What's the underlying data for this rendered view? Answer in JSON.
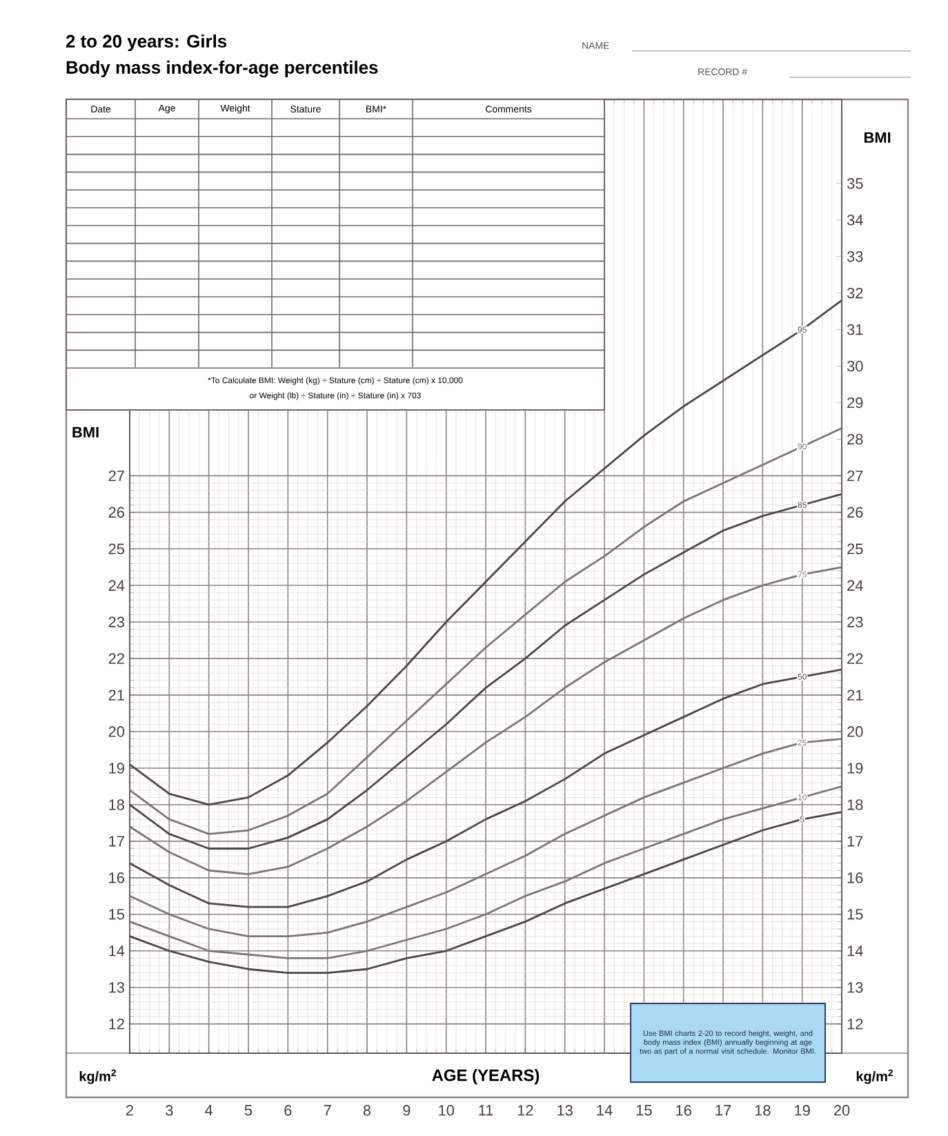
{
  "chart_data": {
    "type": "line",
    "title": "2 to 20 years: Girls",
    "subtitle": "Body mass index-for-age percentiles",
    "xlabel": "AGE (YEARS)",
    "ylabel": "BMI",
    "y2label": "BMI",
    "x": [
      2,
      3,
      4,
      5,
      6,
      7,
      8,
      9,
      10,
      11,
      12,
      13,
      14,
      15,
      16,
      17,
      18,
      19,
      20
    ],
    "series": [
      {
        "name": "95",
        "color": "#4d4545",
        "values": [
          19.1,
          18.3,
          18.0,
          18.2,
          18.8,
          19.7,
          20.7,
          21.8,
          23.0,
          24.1,
          25.2,
          26.3,
          27.2,
          28.1,
          28.9,
          29.6,
          30.3,
          31.0,
          31.8
        ]
      },
      {
        "name": "90",
        "color": "#7d7575",
        "values": [
          18.4,
          17.6,
          17.2,
          17.3,
          17.7,
          18.3,
          19.3,
          20.3,
          21.3,
          22.3,
          23.2,
          24.1,
          24.8,
          25.6,
          26.3,
          26.8,
          27.3,
          27.8,
          28.3
        ]
      },
      {
        "name": "85",
        "color": "#4d4545",
        "values": [
          18.0,
          17.2,
          16.8,
          16.8,
          17.1,
          17.6,
          18.4,
          19.3,
          20.2,
          21.2,
          22.0,
          22.9,
          23.6,
          24.3,
          24.9,
          25.5,
          25.9,
          26.2,
          26.5
        ]
      },
      {
        "name": "75",
        "color": "#7d7575",
        "values": [
          17.4,
          16.7,
          16.2,
          16.1,
          16.3,
          16.8,
          17.4,
          18.1,
          18.9,
          19.7,
          20.4,
          21.2,
          21.9,
          22.5,
          23.1,
          23.6,
          24.0,
          24.3,
          24.5
        ]
      },
      {
        "name": "50",
        "color": "#4d4545",
        "values": [
          16.4,
          15.8,
          15.3,
          15.2,
          15.2,
          15.5,
          15.9,
          16.5,
          17.0,
          17.6,
          18.1,
          18.7,
          19.4,
          19.9,
          20.4,
          20.9,
          21.3,
          21.5,
          21.7
        ]
      },
      {
        "name": "25",
        "color": "#7d7575",
        "values": [
          15.5,
          15.0,
          14.6,
          14.4,
          14.4,
          14.5,
          14.8,
          15.2,
          15.6,
          16.1,
          16.6,
          17.2,
          17.7,
          18.2,
          18.6,
          19.0,
          19.4,
          19.7,
          19.8
        ]
      },
      {
        "name": "10",
        "color": "#7d7575",
        "values": [
          14.8,
          14.4,
          14.0,
          13.9,
          13.8,
          13.8,
          14.0,
          14.3,
          14.6,
          15.0,
          15.5,
          15.9,
          16.4,
          16.8,
          17.2,
          17.6,
          17.9,
          18.2,
          18.5
        ]
      },
      {
        "name": "5",
        "color": "#4d4545",
        "values": [
          14.4,
          14.0,
          13.7,
          13.5,
          13.4,
          13.4,
          13.5,
          13.8,
          14.0,
          14.4,
          14.8,
          15.3,
          15.7,
          16.1,
          16.5,
          16.9,
          17.3,
          17.6,
          17.8
        ]
      }
    ],
    "xlim": [
      2,
      20
    ],
    "ylim": [
      11.2,
      37.3
    ],
    "y2lim": [
      11.2,
      37.3
    ],
    "xticks": [
      2,
      3,
      4,
      5,
      6,
      7,
      8,
      9,
      10,
      11,
      12,
      13,
      14,
      15,
      16,
      17,
      18,
      19,
      20
    ],
    "yticks": [
      12,
      13,
      14,
      15,
      16,
      17,
      18,
      19,
      20,
      21,
      22,
      23,
      24,
      25,
      26,
      27
    ],
    "y2ticks": [
      12,
      13,
      14,
      15,
      16,
      17,
      18,
      19,
      20,
      21,
      22,
      23,
      24,
      25,
      26,
      27,
      28,
      29,
      30,
      31,
      32,
      33,
      34,
      35
    ],
    "grid": true,
    "annotations": [
      "NAME",
      "RECORD #",
      "Date",
      "Age",
      "Weight",
      "Stature",
      "BMI*",
      "Comments",
      "*To Calculate BMI: Weight (kg) ÷ Stature (cm) ÷ Stature (cm) x 10,000",
      "or Weight (lb) ÷ Stature (in) ÷ Stature (in) x 703",
      "kg/m$^{2}$",
      "kg/m$^{2}$",
      "Use BMI charts 2-20 to record height, weight, and body mass index (BMI) annually beginning at age two as part of a normal visit schedule. Monitor BMI."
    ]
  }
}
